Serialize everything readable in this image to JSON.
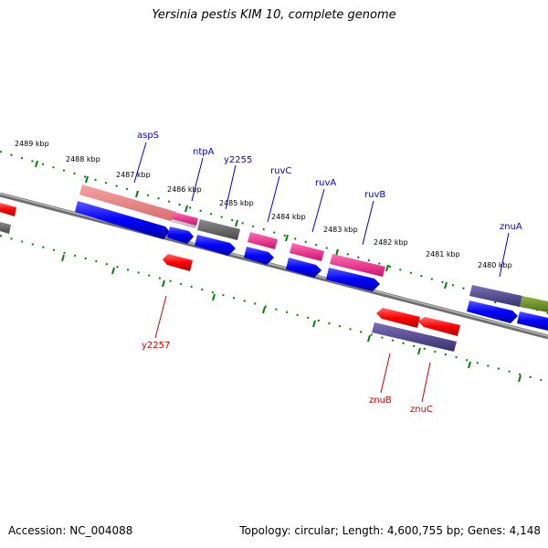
{
  "title": "Yersinia pestis KIM 10, complete genome",
  "accession_text": "Accession: NC_004088",
  "stats_text": "Topology: circular; Length: 4,600,755 bp; Genes: 4,148",
  "colors": {
    "backbone": "#808080",
    "ticks": "#008000",
    "forward_gene": "#0000ff",
    "reverse_gene": "#ff0000",
    "label_forward": "#0000cc",
    "label_reverse": "#cc0000",
    "cog_salmon": "#f08080",
    "cog_gray": "#666666",
    "cog_pink": "#ff1493",
    "cog_purple": "#483d8b",
    "cog_olive": "#6b8e23"
  },
  "kbp_labels": [
    "2489 kbp",
    "2488 kbp",
    "2487 kbp",
    "2486 kbp",
    "2485 kbp",
    "2484 kbp",
    "2483 kbp",
    "2482 kbp",
    "2481 kbp",
    "2480 kbp"
  ],
  "gene_labels": {
    "forward": [
      "aspS",
      "ntpA",
      "y2255",
      "ruvC",
      "ruvA",
      "ruvB",
      "znuA"
    ],
    "reverse": [
      "y2257",
      "znuB",
      "znuC"
    ]
  }
}
